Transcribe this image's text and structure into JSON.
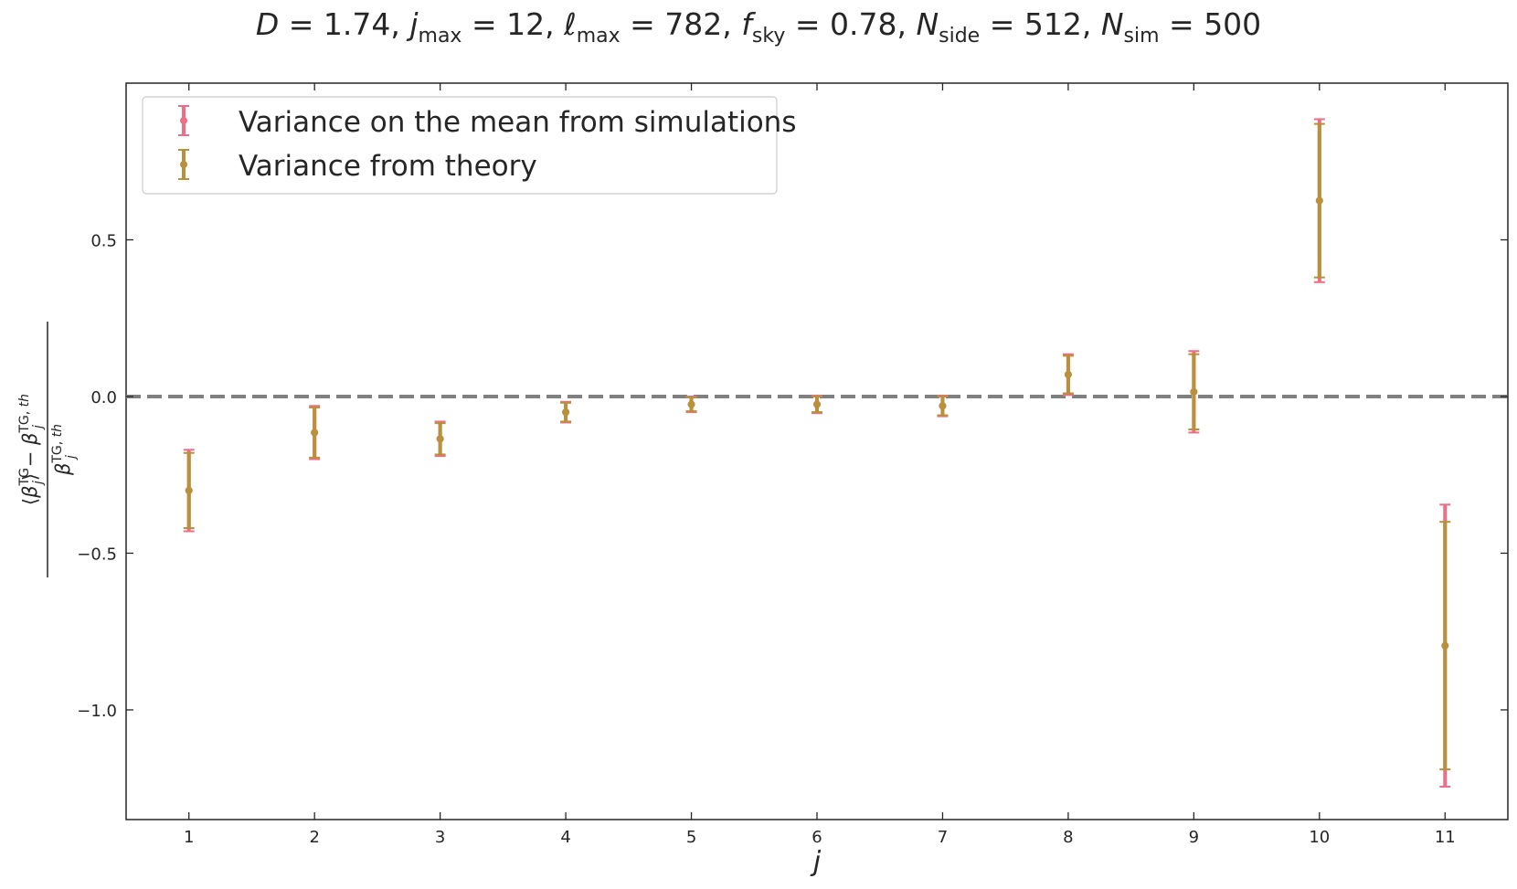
{
  "chart_data": {
    "type": "scatter",
    "title": "D = 1.74,  j_max = 12,  ℓ_max = 782, f_sky = 0.78,  N_side = 512, N_sim = 500",
    "title_parts": {
      "D": "1.74",
      "jmax": "12",
      "lmax": "782",
      "fsky": "0.78",
      "nside": "512",
      "nsim": "500"
    },
    "xlabel": "j",
    "ylabel": "(⟨β_j^TG⟩ − β_j^{TG,th}) / β_j^{TG,th}",
    "x": [
      1,
      2,
      3,
      4,
      5,
      6,
      7,
      8,
      9,
      10,
      11
    ],
    "xlim": [
      0.5,
      11.5
    ],
    "ylim": [
      -1.35,
      1.0
    ],
    "x_ticks": [
      "1",
      "2",
      "3",
      "4",
      "5",
      "6",
      "7",
      "8",
      "9",
      "10",
      "11"
    ],
    "y_ticks": [
      {
        "value": 0.5,
        "label": "0.5"
      },
      {
        "value": 0.0,
        "label": "0.0"
      },
      {
        "value": -0.5,
        "label": "−0.5"
      },
      {
        "value": -1.0,
        "label": "−1.0"
      }
    ],
    "reference_line": {
      "y": 0.0,
      "style": "dashed",
      "color": "#808080"
    },
    "grid": false,
    "legend_position": "top-left",
    "series": [
      {
        "name": "Variance on the mean from simulations",
        "color": "#ee6e87",
        "y": [
          -0.3,
          -0.115,
          -0.135,
          -0.05,
          -0.025,
          -0.025,
          -0.03,
          0.07,
          0.015,
          0.625,
          -0.795
        ],
        "yerr": [
          0.13,
          0.085,
          0.055,
          0.033,
          0.025,
          0.028,
          0.033,
          0.065,
          0.13,
          0.26,
          0.45
        ]
      },
      {
        "name": "Variance from theory",
        "color": "#b9903b",
        "y": [
          -0.3,
          -0.115,
          -0.135,
          -0.05,
          -0.025,
          -0.025,
          -0.03,
          0.07,
          0.015,
          0.625,
          -0.795
        ],
        "yerr": [
          0.12,
          0.08,
          0.05,
          0.03,
          0.022,
          0.025,
          0.03,
          0.06,
          0.12,
          0.245,
          0.395
        ]
      }
    ]
  }
}
